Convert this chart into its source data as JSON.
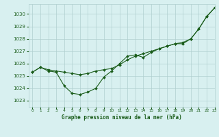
{
  "title": "Graphe pression niveau de la mer (hPa)",
  "bg_color": "#d8f0f0",
  "grid_color": "#b0d0d0",
  "line_color": "#1a5c1a",
  "marker_color": "#1a5c1a",
  "xlim": [
    -0.5,
    23
  ],
  "ylim": [
    1022.5,
    1030.8
  ],
  "yticks": [
    1023,
    1024,
    1025,
    1026,
    1027,
    1028,
    1029,
    1030
  ],
  "xticks": [
    0,
    1,
    2,
    3,
    4,
    5,
    6,
    7,
    8,
    9,
    10,
    11,
    12,
    13,
    14,
    15,
    16,
    17,
    18,
    19,
    20,
    21,
    22,
    23
  ],
  "series1_x": [
    0,
    1,
    2,
    3,
    4,
    5,
    6,
    7,
    8,
    9,
    10,
    11,
    12,
    13,
    14,
    15,
    16,
    17,
    18,
    19,
    20,
    21,
    22,
    23
  ],
  "series1_y": [
    1025.3,
    1025.7,
    1025.4,
    1025.3,
    1024.2,
    1023.6,
    1023.5,
    1023.7,
    1024.0,
    1024.9,
    1025.4,
    1026.0,
    1026.6,
    1026.7,
    1026.5,
    1026.9,
    1027.2,
    1027.4,
    1027.6,
    1027.6,
    1028.0,
    1028.8,
    1029.8,
    1030.5
  ],
  "series2_x": [
    0,
    1,
    2,
    3,
    4,
    5,
    6,
    7,
    8,
    9,
    10,
    11,
    12,
    13,
    14,
    15,
    16,
    17,
    18,
    19,
    20,
    21,
    22,
    23
  ],
  "series2_y": [
    1025.3,
    1025.7,
    1025.5,
    1025.4,
    1025.3,
    1025.2,
    1025.1,
    1025.2,
    1025.4,
    1025.5,
    1025.6,
    1025.9,
    1026.3,
    1026.6,
    1026.8,
    1027.0,
    1027.2,
    1027.4,
    1027.6,
    1027.7,
    1028.0,
    1028.8,
    1029.8,
    1030.5
  ]
}
